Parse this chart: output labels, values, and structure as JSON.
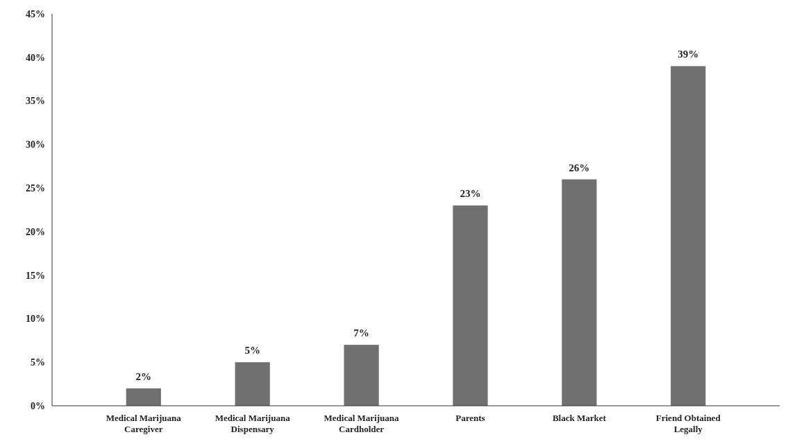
{
  "chart_data": {
    "type": "bar",
    "categories": [
      "Medical Marijuana Caregiver",
      "Medical Marijuana Dispensary",
      "Medical Marijuana Cardholder",
      "Parents",
      "Black Market",
      "Friend Obtained Legally"
    ],
    "values": [
      2,
      5,
      7,
      23,
      26,
      39
    ],
    "value_labels": [
      "2%",
      "5%",
      "7%",
      "23%",
      "26%",
      "39%"
    ],
    "color": "#707070",
    "ylim": [
      0,
      45
    ],
    "yticks": [
      {
        "value": 0,
        "label": "0%"
      },
      {
        "value": 5,
        "label": "5%"
      },
      {
        "value": 10,
        "label": "10%"
      },
      {
        "value": 15,
        "label": "15%"
      },
      {
        "value": 20,
        "label": "20%"
      },
      {
        "value": 25,
        "label": "25%"
      },
      {
        "value": 30,
        "label": "30%"
      },
      {
        "value": 35,
        "label": "35%"
      },
      {
        "value": 40,
        "label": "40%"
      },
      {
        "value": 45,
        "label": "45%"
      }
    ],
    "grid": false
  }
}
